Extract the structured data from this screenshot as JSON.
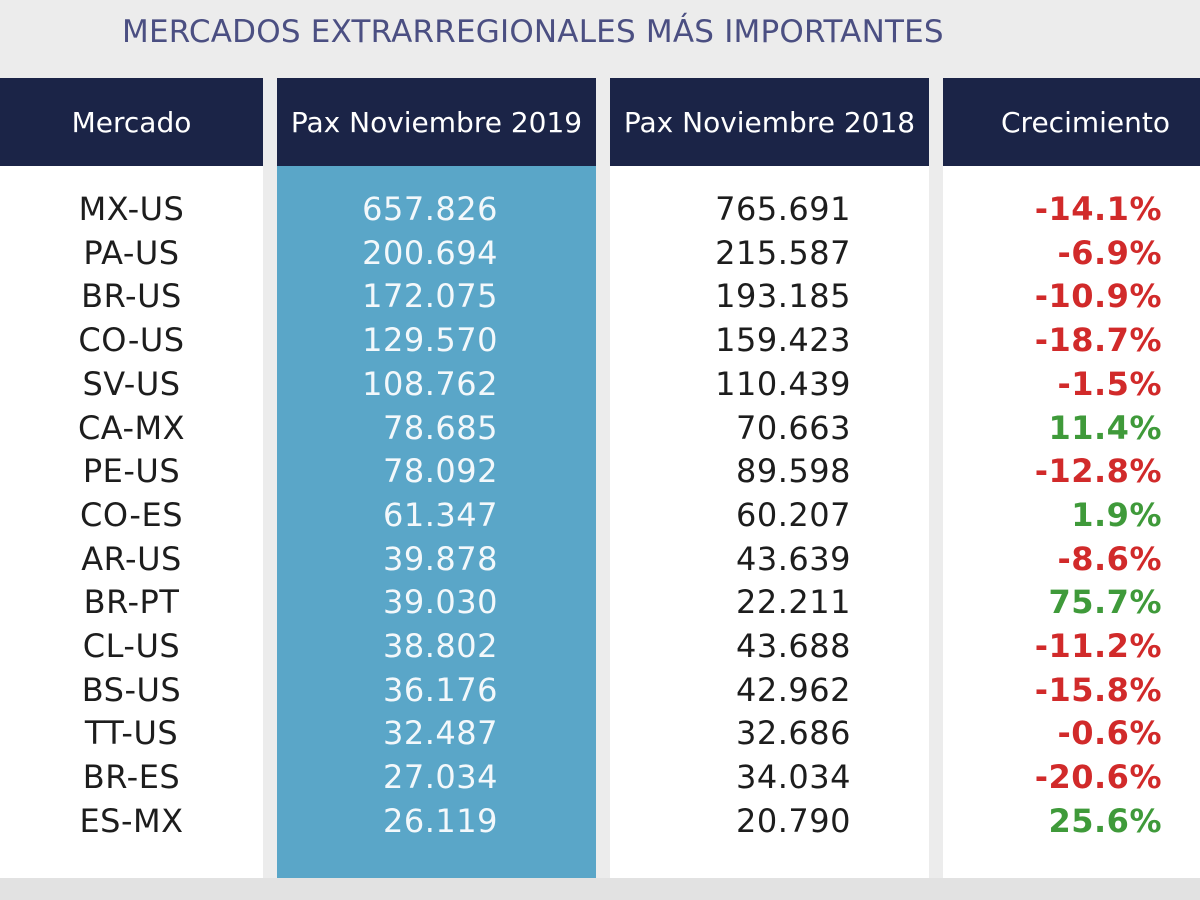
{
  "title": "MERCADOS EXTRARREGIONALES MÁS IMPORTANTES",
  "colors": {
    "header_bg": "#1b2447",
    "title_text": "#4b4f82",
    "highlight_column": "#5aa6c8",
    "negative": "#d12a2a",
    "positive": "#3f9a3a"
  },
  "chart_data": {
    "type": "table",
    "title": "MERCADOS EXTRARREGIONALES MÁS IMPORTANTES",
    "columns": [
      "Mercado",
      "Pax Noviembre 2019",
      "Pax Noviembre 2018",
      "Crecimiento"
    ],
    "rows": [
      {
        "market": "MX-US",
        "pax_2019": "657.826",
        "pax_2018": "765.691",
        "growth": "-14.1%"
      },
      {
        "market": "PA-US",
        "pax_2019": "200.694",
        "pax_2018": "215.587",
        "growth": "-6.9%"
      },
      {
        "market": "BR-US",
        "pax_2019": "172.075",
        "pax_2018": "193.185",
        "growth": "-10.9%"
      },
      {
        "market": "CO-US",
        "pax_2019": "129.570",
        "pax_2018": "159.423",
        "growth": "-18.7%"
      },
      {
        "market": "SV-US",
        "pax_2019": "108.762",
        "pax_2018": "110.439",
        "growth": "-1.5%"
      },
      {
        "market": "CA-MX",
        "pax_2019": "78.685",
        "pax_2018": "70.663",
        "growth": "11.4%"
      },
      {
        "market": "PE-US",
        "pax_2019": "78.092",
        "pax_2018": "89.598",
        "growth": "-12.8%"
      },
      {
        "market": "CO-ES",
        "pax_2019": "61.347",
        "pax_2018": "60.207",
        "growth": "1.9%"
      },
      {
        "market": "AR-US",
        "pax_2019": "39.878",
        "pax_2018": "43.639",
        "growth": "-8.6%"
      },
      {
        "market": "BR-PT",
        "pax_2019": "39.030",
        "pax_2018": "22.211",
        "growth": "75.7%"
      },
      {
        "market": "CL-US",
        "pax_2019": "38.802",
        "pax_2018": "43.688",
        "growth": "-11.2%"
      },
      {
        "market": "BS-US",
        "pax_2019": "36.176",
        "pax_2018": "42.962",
        "growth": "-15.8%"
      },
      {
        "market": "TT-US",
        "pax_2019": "32.487",
        "pax_2018": "32.686",
        "growth": "-0.6%"
      },
      {
        "market": "BR-ES",
        "pax_2019": "27.034",
        "pax_2018": "34.034",
        "growth": "-20.6%"
      },
      {
        "market": "ES-MX",
        "pax_2019": "26.119",
        "pax_2018": "20.790",
        "growth": "25.6%"
      }
    ]
  }
}
